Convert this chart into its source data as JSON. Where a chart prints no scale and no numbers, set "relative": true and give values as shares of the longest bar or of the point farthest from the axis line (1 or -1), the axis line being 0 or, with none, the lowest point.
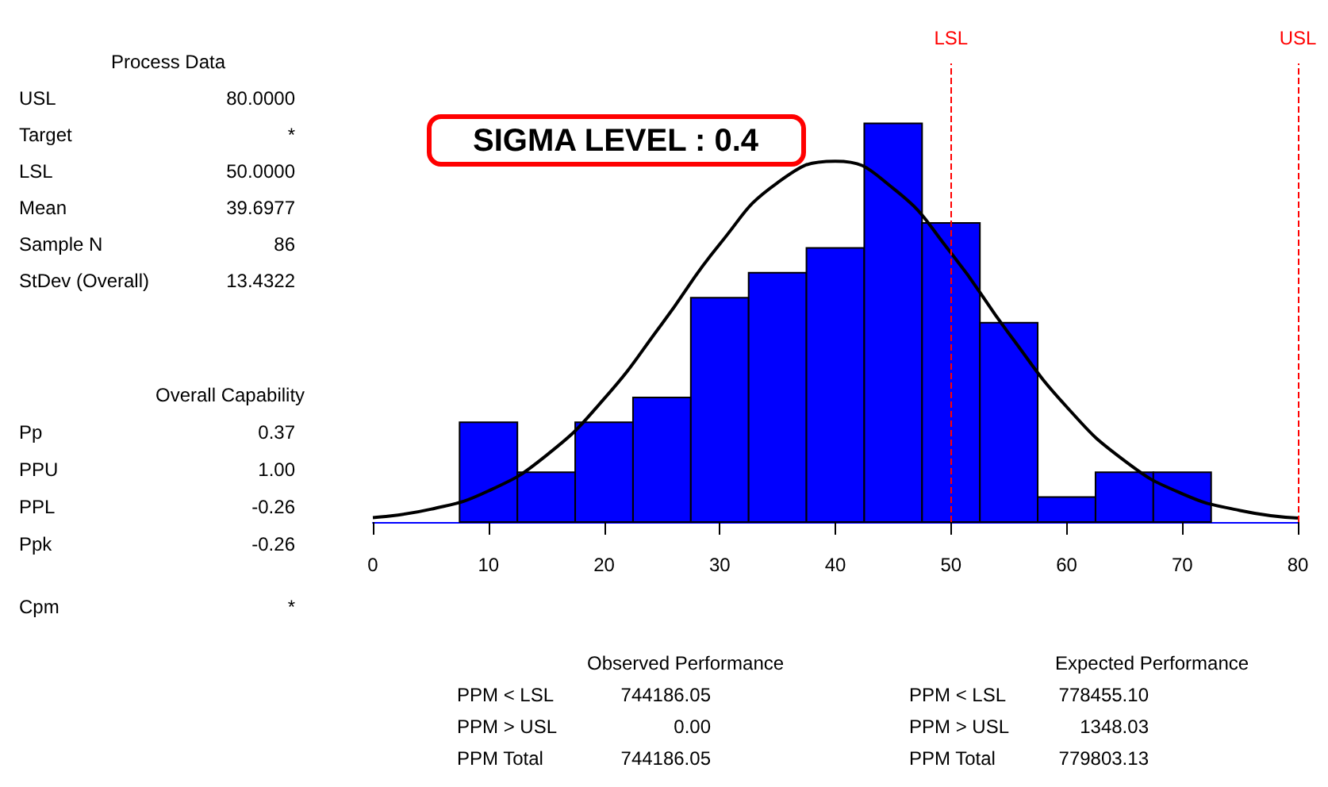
{
  "chart_data": {
    "type": "histogram",
    "relative": true,
    "bins": [
      7.5,
      12.5,
      17.5,
      22.5,
      27.5,
      32.5,
      37.5,
      42.5,
      47.5,
      52.5,
      57.5,
      62.5,
      67.5,
      72.5
    ],
    "values": [
      0.25,
      0.125,
      0.25,
      0.3125,
      0.5625,
      0.625,
      0.6875,
      1,
      0.75,
      0.5,
      0.0625,
      0.125,
      0.125
    ],
    "color": "#0000ff",
    "series": [
      {
        "type": "line",
        "color": "#000000",
        "x": [
          0,
          5,
          10,
          15,
          20,
          25,
          30,
          35,
          40,
          45,
          50,
          55,
          60,
          65,
          70,
          75,
          80
        ],
        "values": [
          0.011,
          0.032,
          0.078,
          0.167,
          0.309,
          0.497,
          0.697,
          0.851,
          0.905,
          0.837,
          0.675,
          0.473,
          0.289,
          0.154,
          0.071,
          0.029,
          0.01
        ]
      }
    ],
    "xlim": [
      0,
      80
    ],
    "xticks": [
      0,
      10,
      20,
      30,
      40,
      50,
      60,
      70,
      80
    ],
    "grid": false,
    "marker": "none",
    "ref_lines": [
      {
        "axis": "x",
        "value": 50,
        "label": "LSL",
        "color": "#ff0000",
        "line_style": "dashed"
      },
      {
        "axis": "x",
        "value": 80,
        "label": "USL",
        "color": "#ff0000",
        "line_style": "dashed"
      }
    ],
    "annotations": [
      "Process Data",
      "USL",
      "80.0000",
      "Target",
      "*",
      "LSL",
      "50.0000",
      "Mean",
      "39.6977",
      "Sample N",
      "86",
      "StDev (Overall)",
      "13.4322",
      "Overall Capability",
      "Pp",
      "0.37",
      "PPU",
      "1.00",
      "PPL",
      "-0.26",
      "Ppk",
      "-0.26",
      "Cpm",
      "*",
      "Observed Performance",
      "PPM < LSL",
      "744186.05",
      "PPM > USL",
      "0.00",
      "PPM Total",
      "744186.05",
      "Expected Performance",
      "PPM < LSL",
      "778455.10",
      "PPM > USL",
      "1348.03",
      "PPM Total",
      "779803.13",
      "SIGMA LEVEL : 0.4"
    ]
  }
}
